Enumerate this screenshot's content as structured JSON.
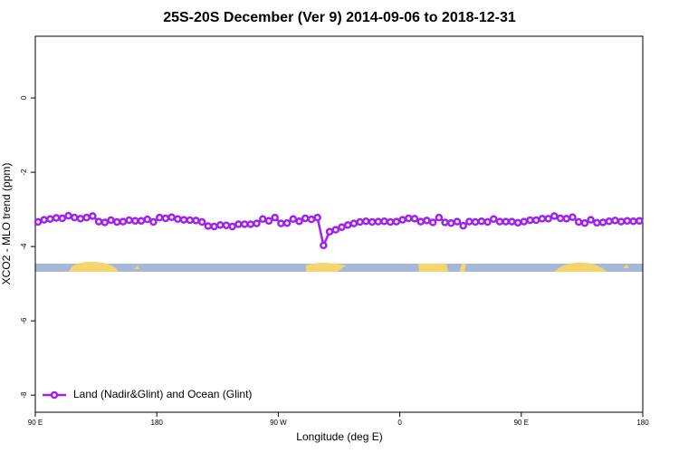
{
  "chart_data": {
    "type": "line",
    "title": "25S-20S December (Ver 9)   2014-09-06 to 2018-12-31",
    "xlabel": "Longitude (deg E)",
    "ylabel": "XCO2 - MLO trend (ppm)",
    "xlim": [
      90,
      540
    ],
    "ylim": [
      -8.46,
      1.66
    ],
    "xticks": [
      {
        "value": 90,
        "label": "90 E"
      },
      180,
      {
        "value": 270,
        "label": "90 W"
      },
      {
        "value": 360,
        "label": "0"
      },
      {
        "value": 450,
        "label": "90 E"
      },
      {
        "value": 540,
        "label": "180"
      }
    ],
    "yticks": [
      0,
      -2,
      -4,
      -6,
      -8
    ],
    "legend": "bottom-left",
    "x": [
      92,
      96.5,
      101,
      105.5,
      110,
      114.5,
      119,
      123.5,
      128,
      132.5,
      137,
      141.5,
      146,
      150.5,
      155,
      159.5,
      164,
      168.5,
      173,
      177.5,
      182,
      186.5,
      191,
      195.5,
      200,
      204.5,
      209,
      213.5,
      218,
      222.5,
      227,
      231.5,
      236,
      240.5,
      245,
      249.5,
      254,
      258.5,
      263,
      267.5,
      272,
      276.5,
      281,
      285.5,
      290,
      294.5,
      299,
      303.5,
      308,
      312.5,
      317,
      321.5,
      326,
      330.5,
      335,
      339.5,
      344,
      348.5,
      353,
      357.5,
      362,
      366.5,
      371,
      375.5,
      380,
      384.5,
      389,
      393.5,
      398,
      402.5,
      407,
      411.5,
      416,
      420.5,
      425,
      429.5,
      434,
      438.5,
      443,
      447.5,
      452,
      456.5,
      461,
      465.5,
      470,
      474.5,
      479,
      483.5,
      488,
      492.5,
      497,
      501.5,
      506,
      510.5,
      515,
      519.5,
      524,
      528.5,
      533,
      537.5
    ],
    "series": [
      {
        "name": "Land (Nadir&Glint) and Ocean (Glint)",
        "color": "#a020f0",
        "values": [
          -3.34,
          -3.28,
          -3.26,
          -3.23,
          -3.24,
          -3.17,
          -3.22,
          -3.25,
          -3.22,
          -3.18,
          -3.33,
          -3.35,
          -3.29,
          -3.34,
          -3.33,
          -3.29,
          -3.31,
          -3.31,
          -3.27,
          -3.34,
          -3.22,
          -3.24,
          -3.21,
          -3.26,
          -3.28,
          -3.29,
          -3.3,
          -3.34,
          -3.45,
          -3.46,
          -3.42,
          -3.43,
          -3.46,
          -3.4,
          -3.4,
          -3.4,
          -3.38,
          -3.26,
          -3.31,
          -3.22,
          -3.38,
          -3.37,
          -3.26,
          -3.32,
          -3.24,
          -3.27,
          -3.22,
          -3.97,
          -3.6,
          -3.55,
          -3.48,
          -3.42,
          -3.38,
          -3.34,
          -3.32,
          -3.34,
          -3.33,
          -3.32,
          -3.34,
          -3.33,
          -3.28,
          -3.24,
          -3.25,
          -3.33,
          -3.3,
          -3.35,
          -3.22,
          -3.35,
          -3.37,
          -3.33,
          -3.44,
          -3.33,
          -3.34,
          -3.32,
          -3.34,
          -3.26,
          -3.33,
          -3.33,
          -3.33,
          -3.36,
          -3.33,
          -3.29,
          -3.29,
          -3.25,
          -3.25,
          -3.18,
          -3.24,
          -3.25,
          -3.21,
          -3.34,
          -3.37,
          -3.28,
          -3.36,
          -3.35,
          -3.32,
          -3.3,
          -3.33,
          -3.31,
          -3.32,
          -3.31
        ]
      }
    ]
  }
}
